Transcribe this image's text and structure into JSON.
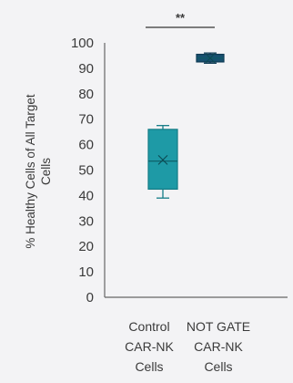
{
  "chart_data": {
    "type": "box",
    "ylabel_lines": [
      "% Healthy Cells of All Target",
      "Cells"
    ],
    "ylim": [
      0,
      100
    ],
    "yticks": [
      0,
      10,
      20,
      30,
      40,
      50,
      60,
      70,
      80,
      90,
      100
    ],
    "significance": "**",
    "grid": false,
    "boxes": [
      {
        "category_lines": [
          "Control",
          "CAR-NK",
          "Cells"
        ],
        "min": 39,
        "q1": 42.5,
        "median": 53.5,
        "mean": 54,
        "q3": 66,
        "max": 67.5,
        "color": "#1e9aa6",
        "stroke": "#157c86"
      },
      {
        "category_lines": [
          "NOT GATE",
          "CAR-NK",
          "Cells"
        ],
        "min": 92,
        "q1": 92.5,
        "median": 94,
        "mean": 94,
        "q3": 95.5,
        "max": 96,
        "color": "#17506f",
        "stroke": "#0f3b55"
      }
    ]
  }
}
